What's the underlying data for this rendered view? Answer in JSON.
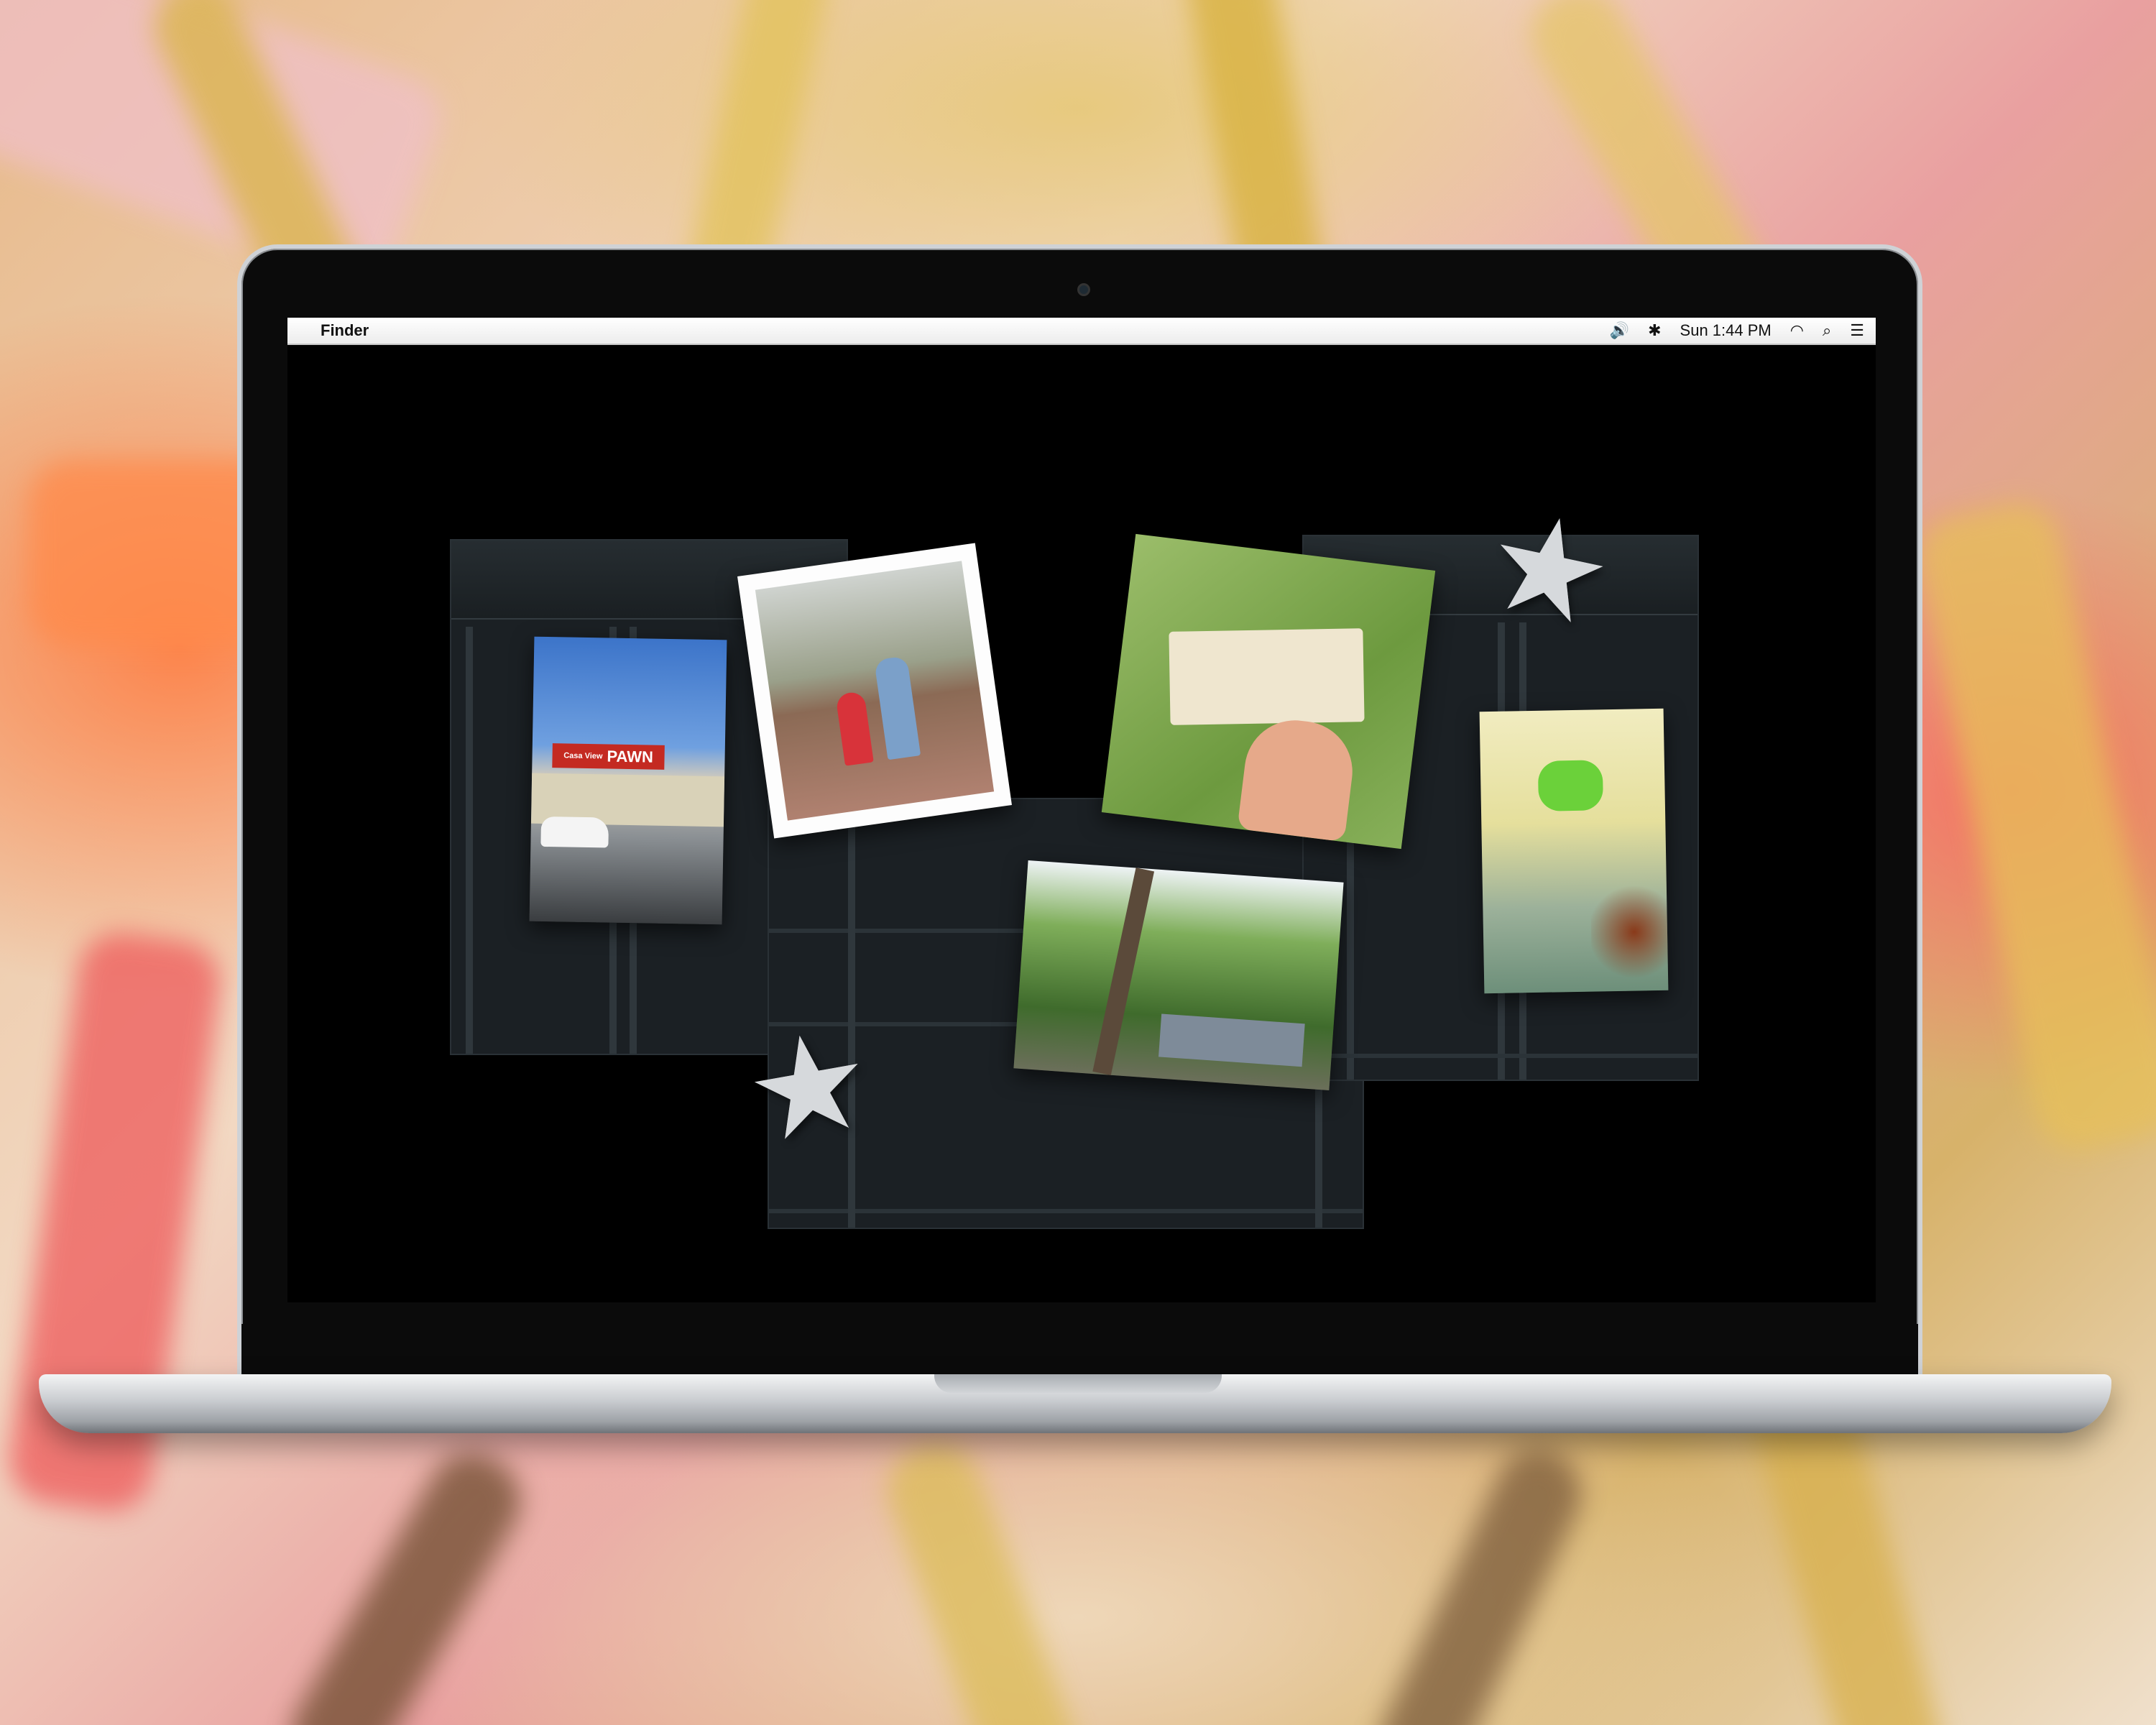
{
  "menubar": {
    "apple_icon": "",
    "app_name": "Finder",
    "volume_icon": "🔊",
    "bluetooth_icon": "✱",
    "clock": "Sun 1:44 PM",
    "wifi_icon": "◠",
    "search_icon": "⌕",
    "list_icon": "☰"
  },
  "photos": {
    "pawn_sign": "PAWN",
    "pawn_sign_prefix": "Casa View"
  },
  "star_glyph": "★"
}
